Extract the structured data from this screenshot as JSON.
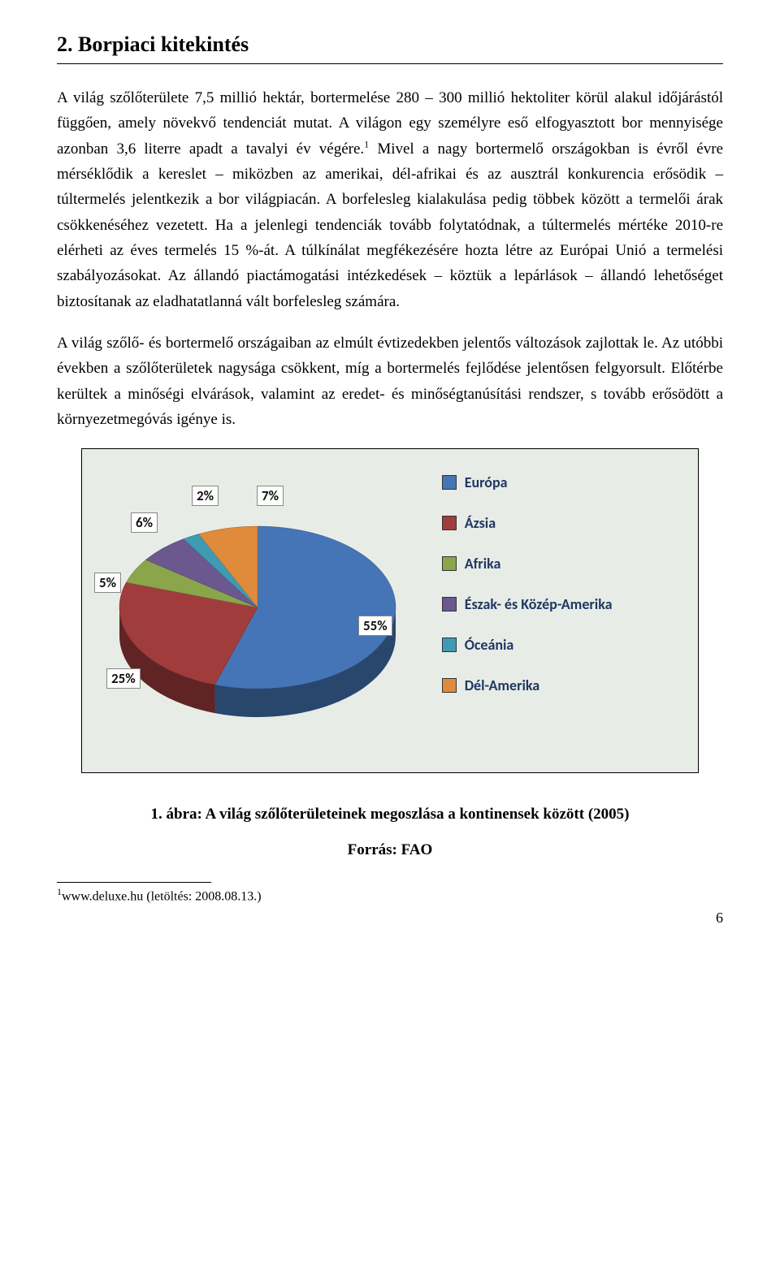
{
  "heading": "2. Borpiaci kitekintés",
  "paragraph1": "A világ szőlőterülete 7,5 millió hektár, bortermelése 280 – 300 millió hektoliter körül alakul időjárástól függően, amely növekvő tendenciát mutat. A világon egy személyre eső elfogyasztott bor mennyisége azonban 3,6 literre apadt a tavalyi év végére.",
  "paragraph1_after_sup": " Mivel a nagy bortermelő országokban is évről évre mérséklődik a kereslet – miközben az amerikai, dél-afrikai és az ausztrál konkurencia erősödik – túltermelés jelentkezik a bor világpiacán. A borfelesleg kialakulása pedig többek között a termelői árak csökkenéséhez vezetett. Ha a jelenlegi tendenciák tovább folytatódnak, a túltermelés mértéke 2010-re elérheti az éves termelés 15 %-át. A túlkínálat megfékezésére hozta létre az Európai Unió a termelési szabályozásokat. Az állandó piactámogatási intézkedések – köztük a lepárlások – állandó lehetőséget biztosítanak az eladhatatlanná vált borfelesleg számára.",
  "sup1": "1",
  "paragraph2": "A világ szőlő- és bortermelő országaiban az elmúlt évtizedekben jelentős változások zajlottak le. Az utóbbi években a szőlőterületek nagysága csökkent, míg a bortermelés fejlődése jelentősen felgyorsult. Előtérbe kerültek a minőségi elvárások, valamint az eredet- és minőségtanúsítási rendszer, s tovább erősödött a környezetmegóvás igénye is.",
  "chart": {
    "type": "pie-3d",
    "background_color": "#e8ece6",
    "border_color": "#000000",
    "slices": [
      {
        "label": "Európa",
        "value": 55,
        "color": "#4575b6"
      },
      {
        "label": "Ázsia",
        "value": 25,
        "color": "#a03c3c"
      },
      {
        "label": "Afrika",
        "value": 5,
        "color": "#8aa54a"
      },
      {
        "label": "Észak- és Közép-Amerika",
        "value": 6,
        "color": "#6b588f"
      },
      {
        "label": "Óceánia",
        "value": 2,
        "color": "#3e9bb3"
      },
      {
        "label": "Dél-Amerika",
        "value": 7,
        "color": "#e08a3c"
      }
    ],
    "slice_label_suffix": "%",
    "legend_font_color": "#1f3864",
    "legend_font_family": "Calibri",
    "legend_font_size_pt": 13,
    "slice_label_font_size_pt": 12,
    "slice_label_bg": "#ffffff",
    "slice_label_border": "#888888"
  },
  "figure_caption": "1. ábra: A világ szőlőterületeinek megoszlása a kontinensek között (2005)",
  "figure_source": "Forrás: FAO",
  "footnote_marker": "1",
  "footnote_text": "www.deluxe.hu (letöltés: 2008.08.13.)",
  "page_number": "6"
}
